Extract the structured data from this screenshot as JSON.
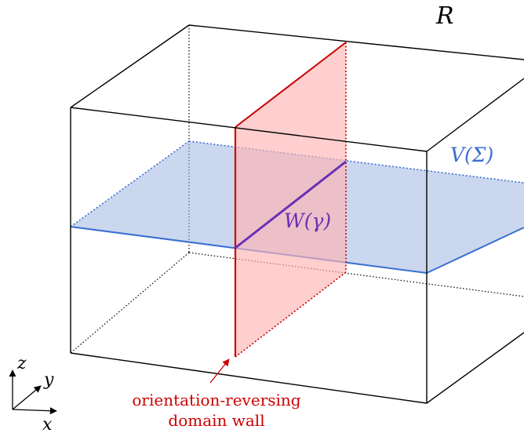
{
  "labels": {
    "region": "R",
    "surface_operator": "V(Σ)",
    "line_operator": "W(γ)",
    "wall_caption_line1": "orientation-reversing",
    "wall_caption_line2": "domain wall"
  },
  "axes": {
    "x": "x",
    "y": "y",
    "z": "z"
  },
  "colors": {
    "edges": "#000000",
    "wall_stroke": "#cc0000",
    "wall_fill": "#ffb3b3",
    "plane_stroke": "#3a6fd0",
    "plane_fill": "#9fb7e0",
    "line_operator": "#6a2fb8",
    "surface_label": "#3a6fd0",
    "wall_caption": "#cc0000"
  }
}
